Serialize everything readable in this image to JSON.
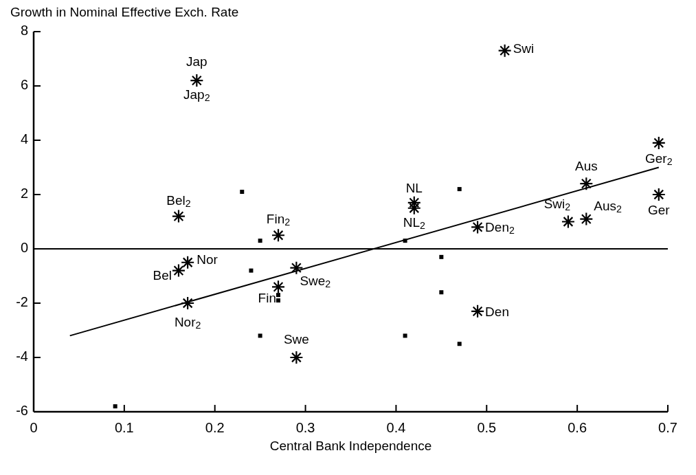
{
  "chart_data": {
    "type": "scatter",
    "ylabel": "Growth in Nominal Effective Exch. Rate",
    "xlabel": "Central Bank Independence",
    "xlim": [
      0,
      0.7
    ],
    "ylim": [
      -6,
      8
    ],
    "xticks": [
      0,
      0.1,
      0.2,
      0.3,
      0.4,
      0.5,
      0.6,
      0.7
    ],
    "yticks": [
      -6,
      -4,
      -2,
      0,
      2,
      4,
      6,
      8
    ],
    "series": [
      {
        "marker": "cross",
        "color": "#000000",
        "x": [
          0.18,
          0.52,
          0.69,
          0.69,
          0.61,
          0.61,
          0.59,
          0.49,
          0.49,
          0.42,
          0.42,
          0.27,
          0.16,
          0.17,
          0.16,
          0.17,
          0.29,
          0.27,
          0.29
        ],
        "values": [
          6.2,
          7.3,
          3.9,
          2.0,
          2.4,
          1.1,
          1.0,
          0.8,
          -2.3,
          1.7,
          1.5,
          0.5,
          1.2,
          -0.5,
          -0.8,
          -2.0,
          -0.7,
          -1.4,
          -4.0
        ]
      },
      {
        "marker": "square",
        "color": "#000000",
        "x": [
          0.23,
          0.25,
          0.24,
          0.27,
          0.27,
          0.25,
          0.09,
          0.47,
          0.41,
          0.45,
          0.45,
          0.41,
          0.47
        ],
        "values": [
          2.1,
          0.3,
          -0.8,
          -1.7,
          -1.9,
          -3.2,
          -5.8,
          2.2,
          0.3,
          -0.3,
          -1.6,
          -3.2,
          -3.5
        ]
      },
      {
        "type": "line",
        "line_style": "solid",
        "color": "#000000",
        "x": [
          0.04,
          0.69
        ],
        "values": [
          -3.2,
          3.0
        ]
      }
    ],
    "ref_lines": [
      {
        "axis": "y",
        "value": 0,
        "color": "#000000"
      }
    ],
    "annotations": [
      {
        "text": "Jap",
        "x": 0.18,
        "y": 6.2
      },
      {
        "text": "Jap$_{2}$",
        "x": 0.18,
        "y": 6.2
      },
      {
        "text": "Swi",
        "x": 0.52,
        "y": 7.3
      },
      {
        "text": "Ger$_{2}$",
        "x": 0.69,
        "y": 3.9
      },
      {
        "text": "Ger",
        "x": 0.69,
        "y": 2.0
      },
      {
        "text": "Aus",
        "x": 0.61,
        "y": 2.4
      },
      {
        "text": "Aus$_{2}$",
        "x": 0.61,
        "y": 1.1
      },
      {
        "text": "Swi$_{2}$",
        "x": 0.59,
        "y": 1.0
      },
      {
        "text": "Den$_{2}$",
        "x": 0.49,
        "y": 0.8
      },
      {
        "text": "Den",
        "x": 0.49,
        "y": -2.3
      },
      {
        "text": "NL",
        "x": 0.42,
        "y": 1.7
      },
      {
        "text": "NL$_{2}$",
        "x": 0.42,
        "y": 1.5
      },
      {
        "text": "Fin$_{2}$",
        "x": 0.27,
        "y": 0.5
      },
      {
        "text": "Bel$_{2}$",
        "x": 0.16,
        "y": 1.2
      },
      {
        "text": "Nor",
        "x": 0.17,
        "y": -0.5
      },
      {
        "text": "Bel",
        "x": 0.16,
        "y": -0.8
      },
      {
        "text": "Nor$_{2}$",
        "x": 0.17,
        "y": -2.0
      },
      {
        "text": "Swe$_{2}$",
        "x": 0.29,
        "y": -0.7
      },
      {
        "text": "Fin",
        "x": 0.27,
        "y": -1.4
      },
      {
        "text": "Swe",
        "x": 0.29,
        "y": -4.0
      }
    ]
  }
}
